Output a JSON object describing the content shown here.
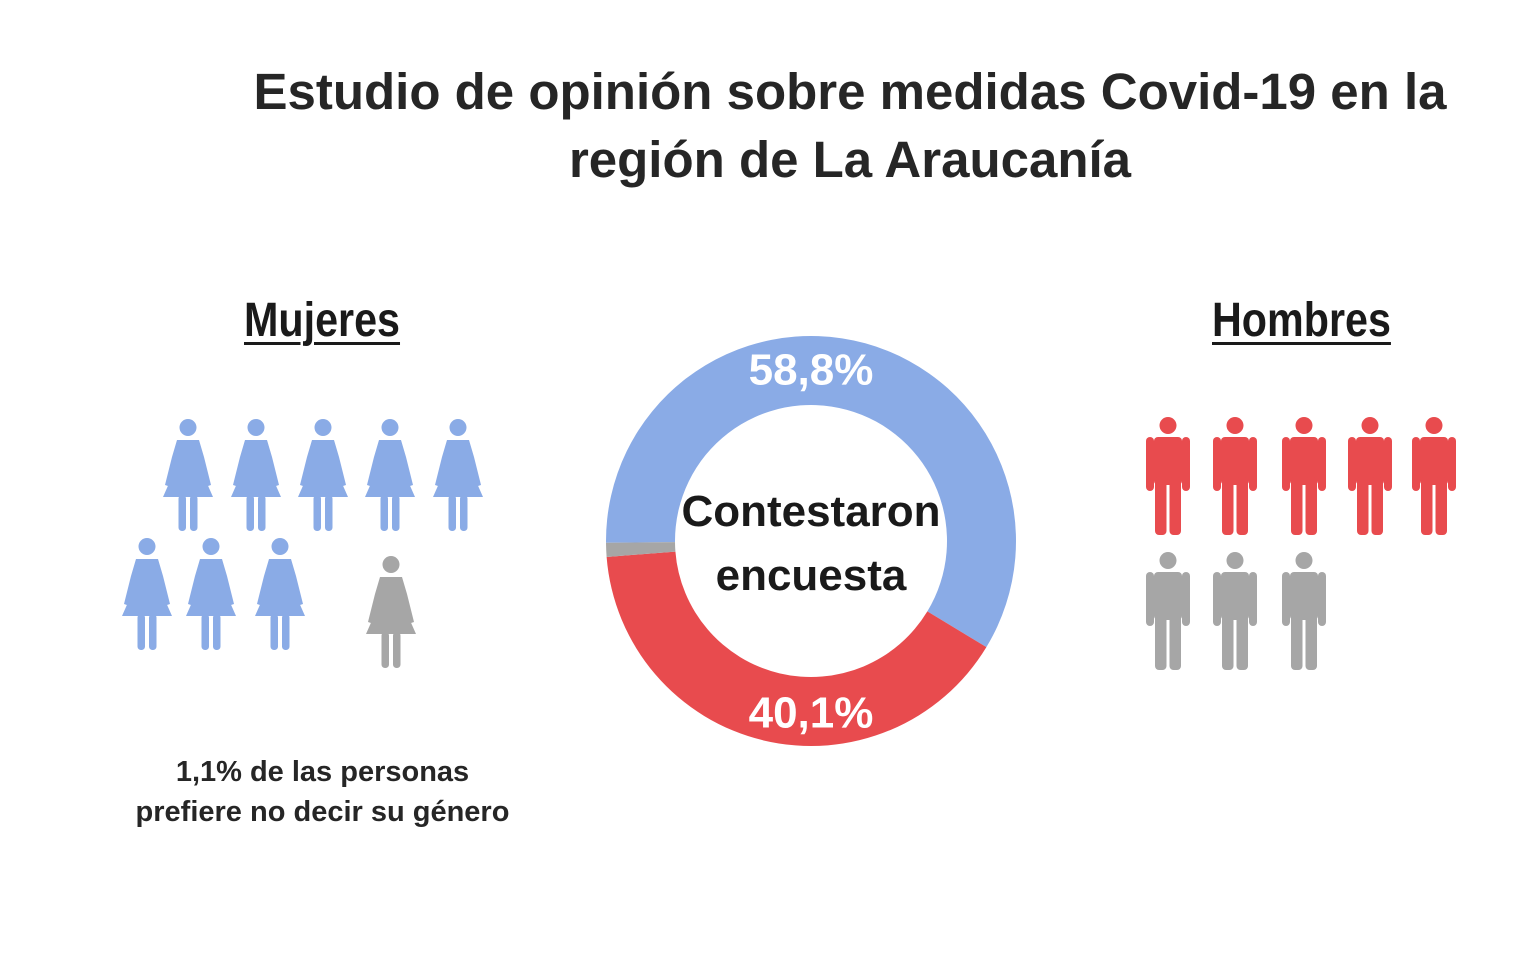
{
  "title": "Estudio de opinión sobre medidas Covid-19 en la región de La Araucanía",
  "groups": {
    "women_label": "Mujeres",
    "men_label": "Hombres"
  },
  "center_text": {
    "line1": "Contestaron",
    "line2": "encuesta"
  },
  "footnote": {
    "line1": "1,1% de las personas",
    "line2": "prefiere no decir su género"
  },
  "colors": {
    "women": "#8aabe6",
    "men": "#e84b4e",
    "unknown": "#a6a6a6"
  },
  "icons": {
    "women_icon": "female-person-icon",
    "men_icon": "male-person-icon",
    "women_colored_count": 8,
    "women_grey_count": 1,
    "men_colored_count": 5,
    "men_grey_count": 3
  },
  "chart_data": {
    "type": "pie",
    "variant": "donut",
    "title": "",
    "slices": [
      {
        "label": "58,8%",
        "value": 58.8,
        "color": "#8aabe6"
      },
      {
        "label": "40,1%",
        "value": 40.1,
        "color": "#e84b4e"
      },
      {
        "label": "",
        "value": 1.1,
        "color": "#a6a6a6"
      }
    ]
  }
}
